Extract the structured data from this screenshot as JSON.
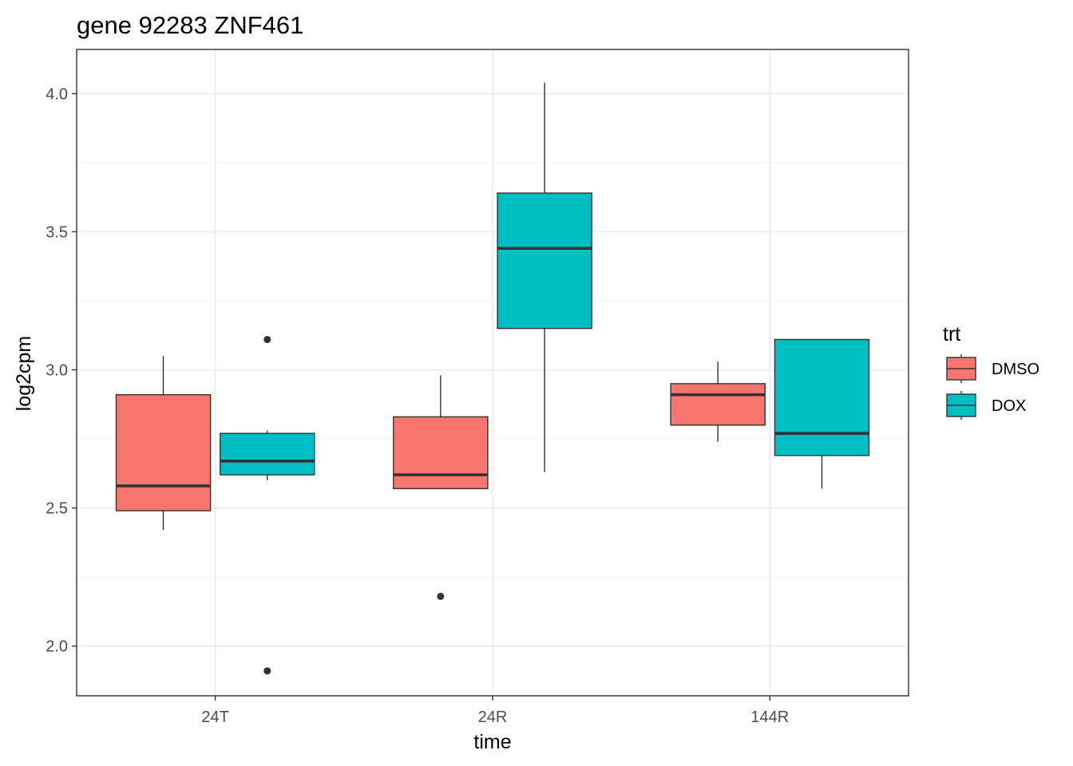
{
  "chart_data": {
    "type": "boxplot",
    "title": "gene 92283 ZNF461",
    "xlabel": "time",
    "ylabel": "log2cpm",
    "categories": [
      "24T",
      "24R",
      "144R"
    ],
    "ylim": [
      1.82,
      4.16
    ],
    "yticks": [
      2.0,
      2.5,
      3.0,
      3.5,
      4.0
    ],
    "ytick_labels": [
      "2.0",
      "2.5",
      "3.0",
      "3.5",
      "4.0"
    ],
    "grid": true,
    "legend": {
      "title": "trt",
      "position": "right",
      "entries": [
        {
          "name": "DMSO",
          "color": "#F8766D"
        },
        {
          "name": "DOX",
          "color": "#00BFC4"
        }
      ]
    },
    "series": [
      {
        "name": "DMSO",
        "color": "#F8766D",
        "boxes": [
          {
            "category": "24T",
            "whisker_low": 2.42,
            "q1": 2.49,
            "median": 2.58,
            "q3": 2.91,
            "whisker_high": 3.05,
            "outliers": []
          },
          {
            "category": "24R",
            "whisker_low": 2.57,
            "q1": 2.57,
            "median": 2.62,
            "q3": 2.83,
            "whisker_high": 2.98,
            "outliers": [
              2.18
            ]
          },
          {
            "category": "144R",
            "whisker_low": 2.74,
            "q1": 2.8,
            "median": 2.91,
            "q3": 2.95,
            "whisker_high": 3.03,
            "outliers": []
          }
        ]
      },
      {
        "name": "DOX",
        "color": "#00BFC4",
        "boxes": [
          {
            "category": "24T",
            "whisker_low": 2.6,
            "q1": 2.62,
            "median": 2.67,
            "q3": 2.77,
            "whisker_high": 2.78,
            "outliers": [
              3.11,
              1.91
            ]
          },
          {
            "category": "24R",
            "whisker_low": 2.63,
            "q1": 3.15,
            "median": 3.44,
            "q3": 3.64,
            "whisker_high": 4.04,
            "outliers": []
          },
          {
            "category": "144R",
            "whisker_low": 2.57,
            "q1": 2.69,
            "median": 2.77,
            "q3": 3.11,
            "whisker_high": 3.11,
            "outliers": []
          }
        ]
      }
    ]
  }
}
